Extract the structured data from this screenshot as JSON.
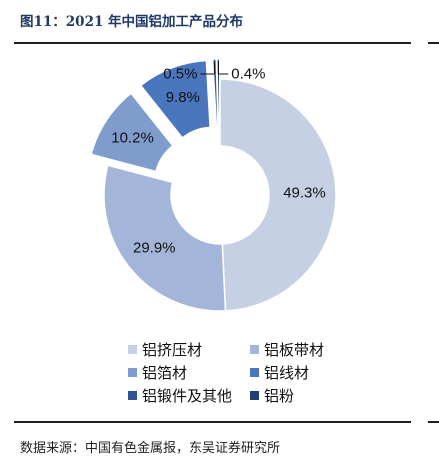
{
  "header": {
    "title": "图11：2021 年中国铝加工产品分布"
  },
  "chart_data": {
    "type": "pie",
    "variant": "donut",
    "title": "",
    "legend_position": "bottom",
    "series": [
      {
        "name": "铝挤压材",
        "value": 49.3,
        "label": "49.3%",
        "color": "#c5d0e4",
        "exploded": false
      },
      {
        "name": "铝板带材",
        "value": 29.9,
        "label": "29.9%",
        "color": "#a3b5d8",
        "exploded": false
      },
      {
        "name": "铝箔材",
        "value": 10.2,
        "label": "10.2%",
        "color": "#7f9ccd",
        "exploded": true
      },
      {
        "name": "铝线材",
        "value": 9.8,
        "label": "9.8%",
        "color": "#4a76bd",
        "exploded": true
      },
      {
        "name": "铝锻件及其他",
        "value": 0.5,
        "label": "0.5%",
        "color": "#2f5693",
        "exploded": true
      },
      {
        "name": "铝粉",
        "value": 0.4,
        "label": "0.4%",
        "color": "#1f3f70",
        "exploded": true
      }
    ]
  },
  "footer": {
    "source": "数据来源：中国有色金属报，东吴证券研究所"
  }
}
